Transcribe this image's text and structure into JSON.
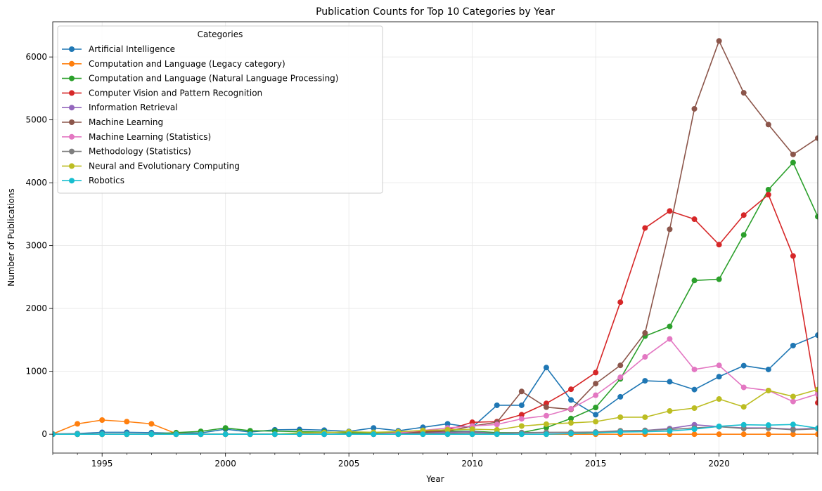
{
  "chart_data": {
    "type": "line",
    "title": "Publication Counts for Top 10 Categories by Year",
    "xlabel": "Year",
    "ylabel": "Number of Publications",
    "xlim": [
      1993,
      2024
    ],
    "ylim": [
      -300,
      6560
    ],
    "xticks": [
      1995,
      2000,
      2005,
      2010,
      2015,
      2020
    ],
    "yticks": [
      0,
      1000,
      2000,
      3000,
      4000,
      5000,
      6000
    ],
    "grid": true,
    "markers": "circle",
    "legend": {
      "title": "Categories",
      "placement": "top-left"
    },
    "x": [
      1993,
      1994,
      1995,
      1996,
      1997,
      1998,
      1999,
      2000,
      2001,
      2002,
      2003,
      2004,
      2005,
      2006,
      2007,
      2008,
      2009,
      2010,
      2011,
      2012,
      2013,
      2014,
      2015,
      2016,
      2017,
      2018,
      2019,
      2020,
      2021,
      2022,
      2023,
      2024
    ],
    "series": [
      {
        "name": "Artificial Intelligence",
        "color": "#1f77b4",
        "values": [
          5,
          10,
          30,
          30,
          25,
          15,
          20,
          80,
          35,
          70,
          75,
          65,
          45,
          100,
          55,
          110,
          165,
          110,
          460,
          460,
          1060,
          545,
          310,
          595,
          850,
          835,
          710,
          915,
          1090,
          1030,
          1410,
          1575
        ]
      },
      {
        "name": "Computation and Language (Legacy category)",
        "color": "#ff7f0e",
        "values": [
          5,
          165,
          225,
          200,
          165,
          10,
          0,
          0,
          0,
          0,
          0,
          0,
          0,
          0,
          0,
          0,
          0,
          0,
          0,
          0,
          0,
          0,
          0,
          0,
          0,
          0,
          0,
          0,
          0,
          0,
          0,
          0
        ]
      },
      {
        "name": "Computation and Language (Natural Language Processing)",
        "color": "#2ca02c",
        "values": [
          0,
          0,
          0,
          0,
          0,
          25,
          45,
          100,
          55,
          50,
          40,
          35,
          20,
          20,
          30,
          50,
          50,
          50,
          25,
          25,
          105,
          250,
          425,
          880,
          1560,
          1715,
          2445,
          2465,
          3170,
          3890,
          4320,
          3460
        ]
      },
      {
        "name": "Computer Vision and Pattern Recognition",
        "color": "#d62728",
        "values": [
          0,
          0,
          0,
          0,
          0,
          0,
          0,
          0,
          0,
          0,
          0,
          0,
          0,
          0,
          20,
          50,
          70,
          190,
          200,
          310,
          490,
          715,
          980,
          2100,
          3280,
          3550,
          3420,
          3015,
          3485,
          3810,
          2835,
          500
        ]
      },
      {
        "name": "Information Retrieval",
        "color": "#9467bd",
        "values": [
          0,
          0,
          0,
          0,
          0,
          0,
          0,
          0,
          0,
          0,
          0,
          0,
          0,
          0,
          10,
          20,
          30,
          40,
          10,
          20,
          25,
          30,
          30,
          50,
          60,
          90,
          150,
          120,
          100,
          100,
          80,
          95
        ]
      },
      {
        "name": "Machine Learning",
        "color": "#8c564b",
        "values": [
          0,
          0,
          0,
          0,
          0,
          0,
          0,
          0,
          0,
          0,
          0,
          0,
          0,
          0,
          20,
          30,
          50,
          130,
          190,
          680,
          430,
          395,
          805,
          1095,
          1610,
          3260,
          5175,
          6255,
          5430,
          4925,
          4450,
          4710
        ]
      },
      {
        "name": "Machine Learning (Statistics)",
        "color": "#e377c2",
        "values": [
          0,
          0,
          0,
          0,
          0,
          0,
          0,
          0,
          0,
          0,
          0,
          0,
          0,
          0,
          20,
          60,
          100,
          130,
          155,
          245,
          295,
          405,
          620,
          905,
          1230,
          1515,
          1030,
          1095,
          745,
          695,
          520,
          640
        ]
      },
      {
        "name": "Methodology (Statistics)",
        "color": "#7f7f7f",
        "values": [
          0,
          0,
          0,
          0,
          0,
          0,
          0,
          0,
          0,
          0,
          0,
          0,
          0,
          0,
          0,
          10,
          15,
          20,
          15,
          25,
          30,
          30,
          35,
          55,
          60,
          75,
          100,
          120,
          90,
          95,
          70,
          85
        ]
      },
      {
        "name": "Neural and Evolutionary Computing",
        "color": "#bcbd22",
        "values": [
          0,
          0,
          0,
          0,
          0,
          0,
          0,
          0,
          0,
          0,
          20,
          25,
          40,
          30,
          40,
          60,
          70,
          80,
          70,
          130,
          160,
          180,
          200,
          270,
          270,
          370,
          415,
          560,
          435,
          695,
          600,
          710
        ]
      },
      {
        "name": "Robotics",
        "color": "#17becf",
        "values": [
          0,
          0,
          0,
          0,
          0,
          0,
          0,
          0,
          0,
          0,
          0,
          0,
          0,
          0,
          0,
          0,
          0,
          0,
          0,
          0,
          0,
          10,
          20,
          35,
          40,
          50,
          80,
          125,
          150,
          145,
          155,
          95
        ]
      }
    ]
  }
}
